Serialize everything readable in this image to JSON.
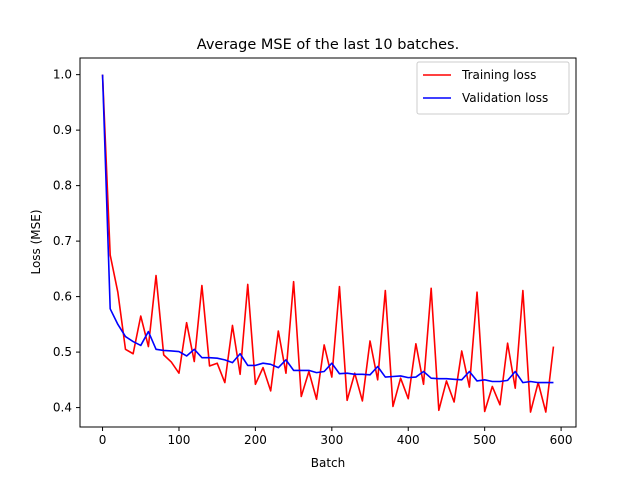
{
  "chart_data": {
    "type": "line",
    "title": "Average MSE of the last 10 batches.",
    "xlabel": "Batch",
    "ylabel": "Loss (MSE)",
    "xlim": [
      -29.5,
      619.5
    ],
    "ylim": [
      0.365,
      1.03
    ],
    "xticks": [
      0,
      100,
      200,
      300,
      400,
      500,
      600
    ],
    "yticks": [
      0.4,
      0.5,
      0.6,
      0.7,
      0.8,
      0.9,
      1.0
    ],
    "xtick_labels": [
      "0",
      "100",
      "200",
      "300",
      "400",
      "500",
      "600"
    ],
    "ytick_labels": [
      "0.4",
      "0.5",
      "0.6",
      "0.7",
      "0.8",
      "0.9",
      "1.0"
    ],
    "legend_position": "top-right",
    "grid": false,
    "series": [
      {
        "name": "Training loss",
        "color": "#ff0000",
        "x": [
          0,
          10,
          20,
          30,
          40,
          50,
          60,
          70,
          80,
          90,
          100,
          110,
          120,
          130,
          140,
          150,
          160,
          170,
          180,
          190,
          200,
          210,
          220,
          230,
          240,
          250,
          260,
          270,
          280,
          290,
          300,
          310,
          320,
          330,
          340,
          350,
          360,
          370,
          380,
          390,
          400,
          410,
          420,
          430,
          440,
          450,
          460,
          470,
          480,
          490,
          500,
          510,
          520,
          530,
          540,
          550,
          560,
          570,
          580,
          590
        ],
        "values": [
          1.0,
          0.675,
          0.608,
          0.505,
          0.497,
          0.565,
          0.51,
          0.638,
          0.495,
          0.482,
          0.462,
          0.553,
          0.483,
          0.62,
          0.475,
          0.48,
          0.445,
          0.548,
          0.46,
          0.622,
          0.442,
          0.472,
          0.43,
          0.538,
          0.462,
          0.627,
          0.42,
          0.465,
          0.415,
          0.513,
          0.455,
          0.618,
          0.413,
          0.462,
          0.412,
          0.52,
          0.45,
          0.611,
          0.402,
          0.453,
          0.416,
          0.515,
          0.442,
          0.615,
          0.395,
          0.448,
          0.41,
          0.502,
          0.437,
          0.608,
          0.393,
          0.438,
          0.405,
          0.516,
          0.435,
          0.611,
          0.392,
          0.445,
          0.392,
          0.51
        ]
      },
      {
        "name": "Validation loss",
        "color": "#0000ff",
        "x": [
          0,
          10,
          20,
          30,
          40,
          50,
          60,
          70,
          80,
          90,
          100,
          110,
          120,
          130,
          140,
          150,
          160,
          170,
          180,
          190,
          200,
          210,
          220,
          230,
          240,
          250,
          260,
          270,
          280,
          290,
          300,
          310,
          320,
          330,
          340,
          350,
          360,
          370,
          380,
          390,
          400,
          410,
          420,
          430,
          440,
          450,
          460,
          470,
          480,
          490,
          500,
          510,
          520,
          530,
          540,
          550,
          560,
          570,
          580,
          590
        ],
        "values": [
          1.0,
          0.578,
          0.55,
          0.528,
          0.519,
          0.512,
          0.537,
          0.505,
          0.503,
          0.502,
          0.501,
          0.493,
          0.505,
          0.49,
          0.49,
          0.489,
          0.486,
          0.481,
          0.497,
          0.476,
          0.476,
          0.48,
          0.478,
          0.472,
          0.486,
          0.467,
          0.467,
          0.467,
          0.463,
          0.465,
          0.48,
          0.461,
          0.462,
          0.46,
          0.46,
          0.459,
          0.474,
          0.455,
          0.456,
          0.457,
          0.454,
          0.455,
          0.465,
          0.453,
          0.452,
          0.452,
          0.451,
          0.45,
          0.465,
          0.448,
          0.45,
          0.447,
          0.447,
          0.449,
          0.465,
          0.445,
          0.447,
          0.445,
          0.445,
          0.445
        ]
      }
    ]
  }
}
